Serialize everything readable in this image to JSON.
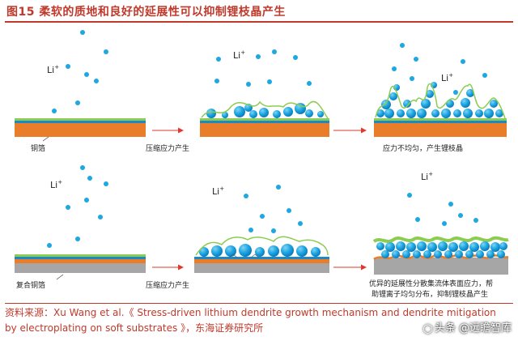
{
  "figure": {
    "title": "图15  柔软的质地和良好的延展性可以抑制锂枝晶产生",
    "ion": {
      "symbol": "Li",
      "charge": "+"
    },
    "top_row": {
      "copper_label": "铜箔",
      "stage2_label": "压缩应力产生",
      "stage3_label": "应力不均匀，产生锂枝晶"
    },
    "bottom_row": {
      "copper_label": "复合铜箔",
      "stage2_label": "压缩应力产生",
      "stage3_label_line1": "优异的延展性分散集流体表面应力，帮",
      "stage3_label_line2": "助锂离子均匀分布，抑制锂枝晶产生"
    }
  },
  "source": {
    "line1": "资料来源：Xu Wang et al.《 Stress-driven lithium dendrite growth mechanism and dendrite mitigation",
    "line2": "by electroplating on soft substrates 》，东海证券研究所"
  },
  "watermark": {
    "text": "头条 @远瞻智库",
    "logo": "icon"
  },
  "colors": {
    "accent_red": "#c0392b",
    "ion_blue": "#1ea7e1",
    "copper_orange": "#ea7d2a",
    "substrate_gray": "#a6a6a6",
    "green_layer": "#8ccc50",
    "blue_layer": "#1c88c8",
    "arrow_red": "#e0382e"
  }
}
